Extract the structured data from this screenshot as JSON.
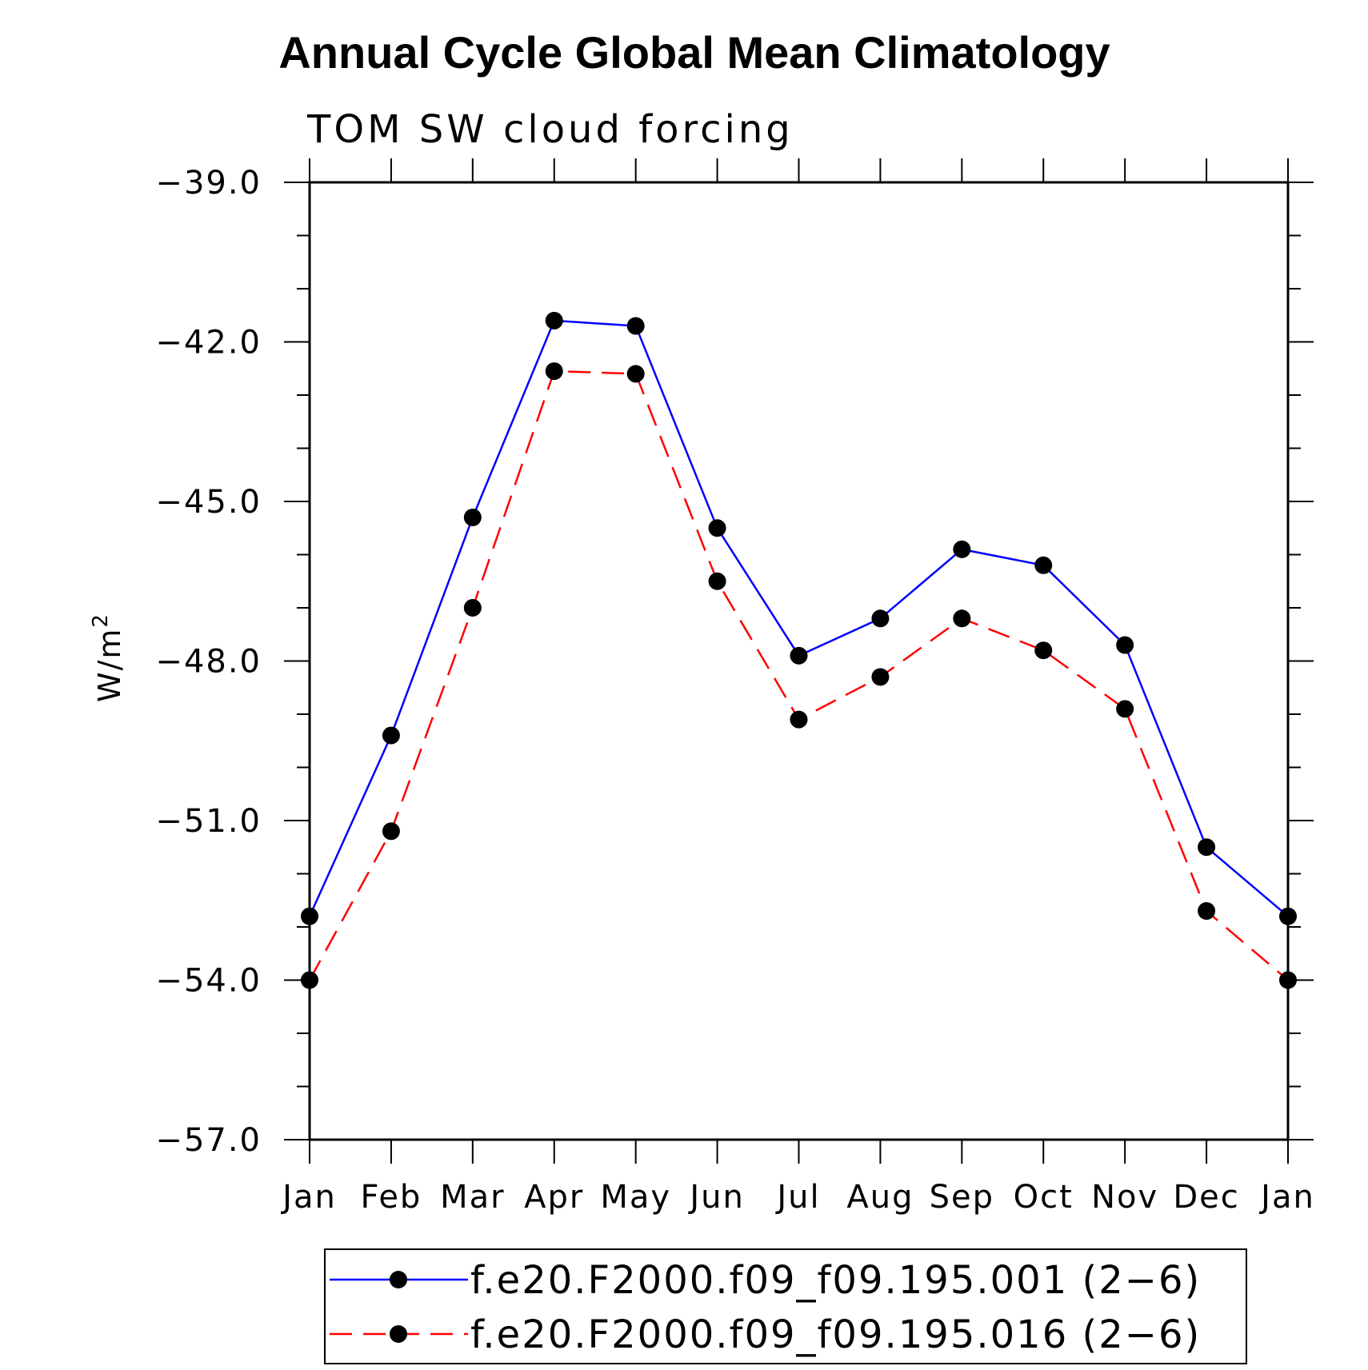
{
  "chart_data": {
    "type": "line",
    "title": "Annual Cycle Global Mean Climatology",
    "subtitle": "TOM SW cloud forcing",
    "ylabel": "W/m",
    "ylabel_superscript": "2",
    "xlabel": "",
    "categories": [
      "Jan",
      "Feb",
      "Mar",
      "Apr",
      "May",
      "Jun",
      "Jul",
      "Aug",
      "Sep",
      "Oct",
      "Nov",
      "Dec",
      "Jan"
    ],
    "ylim": [
      -57.0,
      -39.0
    ],
    "yticks": [
      -39.0,
      -42.0,
      -45.0,
      -48.0,
      -51.0,
      -54.0,
      -57.0
    ],
    "ytick_labels": [
      "−39.0",
      "−42.0",
      "−45.0",
      "−48.0",
      "−51.0",
      "−54.0",
      "−57.0"
    ],
    "y_minor_step": 1.0,
    "grid": false,
    "legend_position": "bottom",
    "series": [
      {
        "name": "f.e20.F2000.f09_f09.195.001 (2−6)",
        "color": "#0000ff",
        "line_style": "solid",
        "marker": "filled-circle",
        "values": [
          -52.8,
          -49.4,
          -45.3,
          -41.6,
          -41.7,
          -45.5,
          -47.9,
          -47.2,
          -45.9,
          -46.2,
          -47.7,
          -51.5,
          -52.8
        ]
      },
      {
        "name": "f.e20.F2000.f09_f09.195.016 (2−6)",
        "color": "#ff0000",
        "line_style": "dashed",
        "marker": "filled-circle",
        "values": [
          -54.0,
          -51.2,
          -47.0,
          -42.55,
          -42.6,
          -46.5,
          -49.1,
          -48.3,
          -47.2,
          -47.8,
          -48.9,
          -52.7,
          -54.0
        ]
      }
    ]
  }
}
